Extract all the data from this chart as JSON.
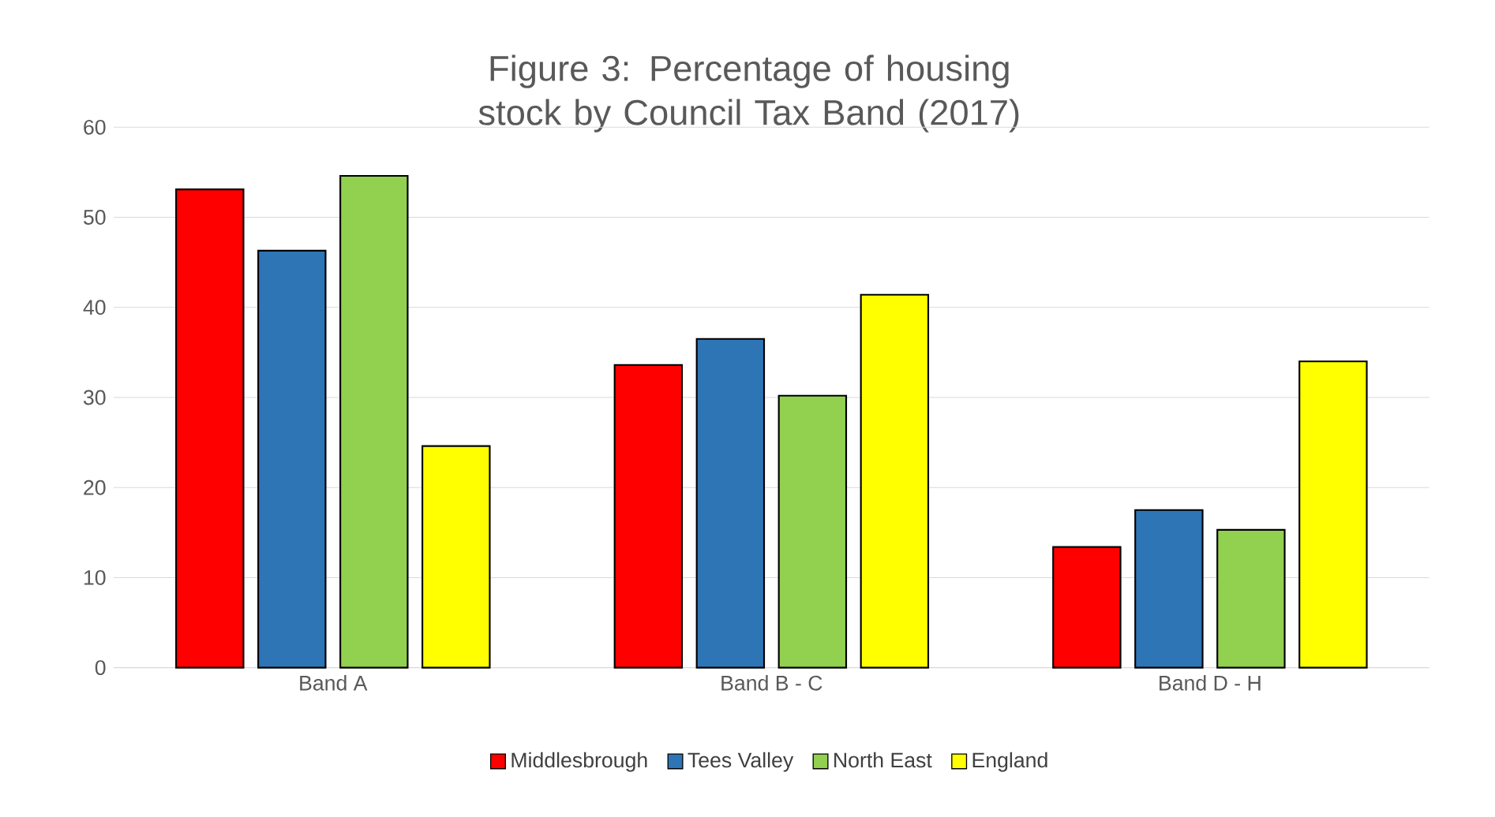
{
  "chart_data": {
    "type": "bar",
    "title": "Figure 3: Percentage of housing stock by Council Tax Band (2017)",
    "categories": [
      "Band A",
      "Band B - C",
      "Band D - H"
    ],
    "series": [
      {
        "name": "Middlesbrough",
        "color": "#ff0000",
        "values": [
          53.1,
          33.6,
          13.4
        ]
      },
      {
        "name": "Tees Valley",
        "color": "#2e75b6",
        "values": [
          46.3,
          36.5,
          17.5
        ]
      },
      {
        "name": "North East",
        "color": "#92d050",
        "values": [
          54.6,
          30.2,
          15.3
        ]
      },
      {
        "name": "England",
        "color": "#ffff00",
        "values": [
          24.6,
          41.4,
          34.0
        ]
      }
    ],
    "ylim": [
      0,
      60
    ],
    "yticks": [
      0,
      10,
      20,
      30,
      40,
      50,
      60
    ],
    "grid": "y",
    "legend": "bottom"
  }
}
